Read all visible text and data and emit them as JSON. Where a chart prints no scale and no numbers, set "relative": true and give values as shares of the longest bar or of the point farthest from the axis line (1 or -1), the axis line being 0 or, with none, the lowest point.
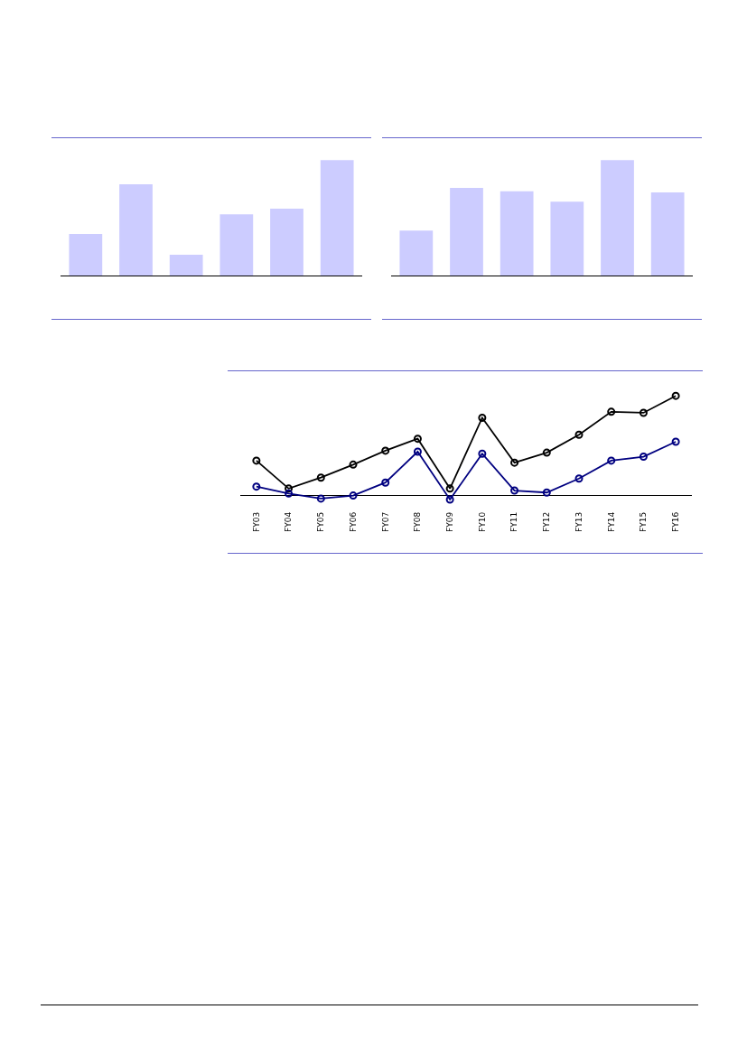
{
  "chart_data": [
    {
      "type": "bar",
      "relative": true,
      "categories": [
        null,
        null,
        null,
        null,
        null,
        null
      ],
      "color": "#ccccff",
      "values": [
        0.36,
        0.79,
        0.18,
        0.53,
        0.58,
        1
      ]
    },
    {
      "type": "bar",
      "relative": true,
      "categories": [
        null,
        null,
        null,
        null,
        null,
        null
      ],
      "color": "#ccccff",
      "values": [
        0.39,
        0.76,
        0.73,
        0.64,
        1,
        0.72
      ]
    },
    {
      "type": "line",
      "relative": true,
      "marker": "circle",
      "categories": [
        "FY03",
        "FY04",
        "FY05",
        "FY06",
        "FY07",
        "FY08",
        "FY09",
        "FY10",
        "FY11",
        "FY12",
        "FY13",
        "FY14",
        "FY15",
        "FY16"
      ],
      "series": [
        {
          "color": "#000000",
          "values": [
            0.35,
            0.07,
            0.18,
            0.31,
            0.45,
            0.57,
            0.07,
            0.78,
            0.33,
            0.43,
            0.61,
            0.84,
            0.83,
            1
          ]
        },
        {
          "color": "#000080",
          "values": [
            0.09,
            0.02,
            -0.03,
            0,
            0.13,
            0.44,
            -0.04,
            0.42,
            0.05,
            0.03,
            0.17,
            0.35,
            0.39,
            0.54
          ]
        }
      ]
    }
  ]
}
